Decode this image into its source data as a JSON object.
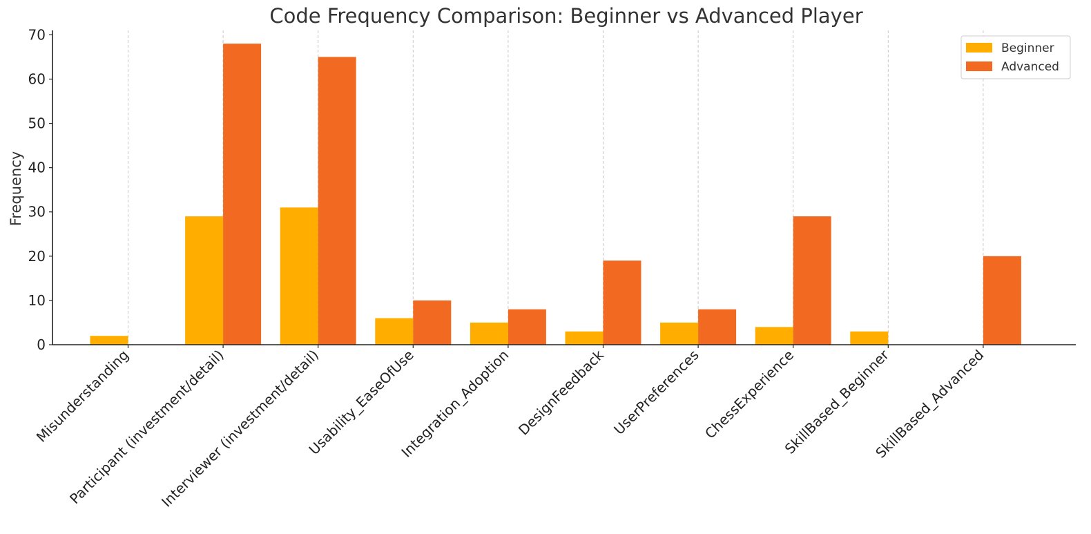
{
  "chart_data": {
    "type": "bar",
    "title": "Code Frequency Comparison: Beginner vs Advanced Player",
    "xlabel": "",
    "ylabel": "Frequency",
    "ylim": [
      0,
      71
    ],
    "yticks": [
      0,
      10,
      20,
      30,
      40,
      50,
      60,
      70
    ],
    "grid": "vertical dashed",
    "legend": "top-right",
    "categories": [
      "Misunderstanding",
      "Participant (investment/detail)",
      "Interviewer (investment/detail)",
      "Usability_EaseOfUse",
      "Integration_Adoption",
      "DesignFeedback",
      "UserPreferences",
      "ChessExperience",
      "SkillBased_Beginner",
      "SkillBased_Advanced"
    ],
    "series": [
      {
        "name": "Beginner",
        "color": "#FFAE00",
        "values": [
          2,
          29,
          31,
          6,
          5,
          3,
          5,
          4,
          3,
          0
        ]
      },
      {
        "name": "Advanced",
        "color": "#F26A21",
        "values": [
          0,
          68,
          65,
          10,
          8,
          19,
          8,
          29,
          0,
          20
        ]
      }
    ]
  }
}
